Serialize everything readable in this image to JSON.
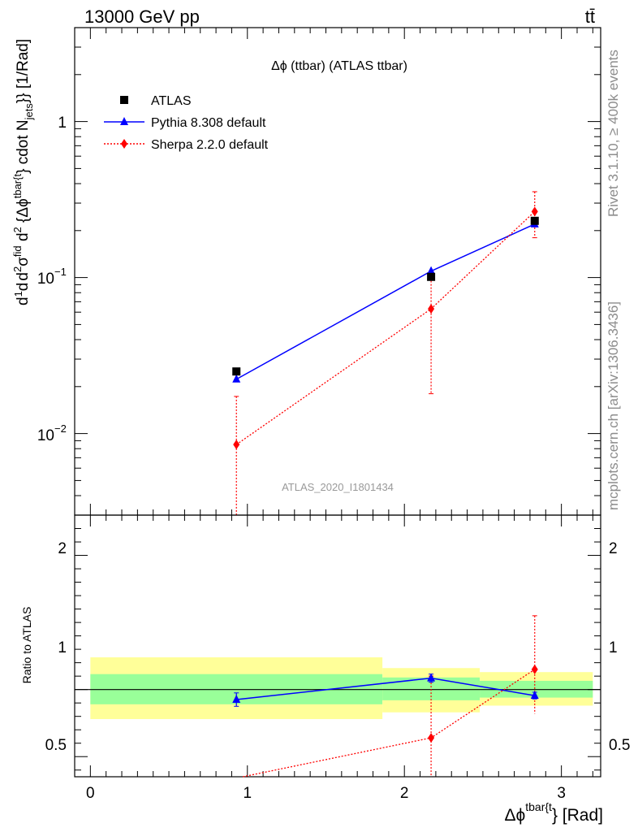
{
  "header": {
    "energy_label": "13000 GeV pp",
    "process_label": "tt̄"
  },
  "side": {
    "rivet": "Rivet 3.1.10, ≥ 400k events",
    "mcplots": "mcplots.cern.ch [arXiv:1306.3436]"
  },
  "colors": {
    "data": "#000000",
    "pythia": "#0000ff",
    "sherpa": "#ff0000",
    "band_inner": "#99ff99",
    "band_outer": "#ffff99"
  },
  "chart_data": [
    {
      "type": "scatter",
      "panel": "main",
      "title": "Δϕ (ttbar) (ATLAS ttbar)",
      "ylabel": "d 1/σ d d²σ^fid / d² {Δϕ^tbar{t}} cdot N_jets}} [1/Rad]",
      "yscale": "log",
      "ylim": [
        0.003,
        4
      ],
      "xlim": [
        -0.1,
        3.25
      ],
      "watermark": "ATLAS_2020_I1801434",
      "ytick_labels": [
        "1",
        "10^-1",
        "10^-2"
      ],
      "legend_position": "top-left",
      "series": [
        {
          "name": "ATLAS",
          "x": [
            0.93,
            2.17,
            2.83
          ],
          "y": [
            0.025,
            0.101,
            0.231
          ]
        },
        {
          "name": "Pythia 8.308 default",
          "x": [
            0.93,
            2.17,
            2.83
          ],
          "y": [
            0.0223,
            0.11,
            0.22
          ],
          "yerr": [
            0.0008,
            0.006,
            0.009
          ]
        },
        {
          "name": "Sherpa 2.2.0 default",
          "x": [
            0.93,
            2.17,
            2.83
          ],
          "y": [
            0.0085,
            0.063,
            0.265
          ],
          "ylow": [
            0.0026,
            0.018,
            0.18
          ],
          "yhigh": [
            0.0173,
            0.11,
            0.355
          ]
        }
      ]
    },
    {
      "type": "line",
      "panel": "ratio",
      "ylabel": "Ratio to ATLAS",
      "xlabel": "Δϕ^tbar{t}} [Rad]",
      "ylim": [
        0.35,
        2.3
      ],
      "xlim": [
        -0.1,
        3.25
      ],
      "ytick_labels": [
        "0.5",
        "1",
        "2"
      ],
      "xtick_labels": [
        "0",
        "1",
        "2",
        "3"
      ],
      "bands": [
        {
          "x0": 0.0,
          "x1": 1.86,
          "inner": [
            0.89,
            1.115
          ],
          "outer": [
            0.78,
            1.24
          ]
        },
        {
          "x0": 1.86,
          "x1": 2.48,
          "inner": [
            0.92,
            1.09
          ],
          "outer": [
            0.83,
            1.16
          ]
        },
        {
          "x0": 2.48,
          "x1": 3.2,
          "inner": [
            0.94,
            1.065
          ],
          "outer": [
            0.88,
            1.13
          ]
        }
      ],
      "series": [
        {
          "name": "Pythia 8.308 default",
          "x": [
            0.93,
            2.17,
            2.83
          ],
          "y": [
            0.925,
            1.085,
            0.955
          ],
          "yerr": [
            0.05,
            0.03,
            0.025
          ]
        },
        {
          "name": "Sherpa 2.2.0 default",
          "x": [
            0.93,
            2.17,
            2.83
          ],
          "y": [
            0.34,
            0.64,
            1.15
          ],
          "ylow": [
            null,
            0.35,
            0.82
          ],
          "yhigh": [
            null,
            1.1,
            1.55
          ]
        }
      ]
    }
  ]
}
